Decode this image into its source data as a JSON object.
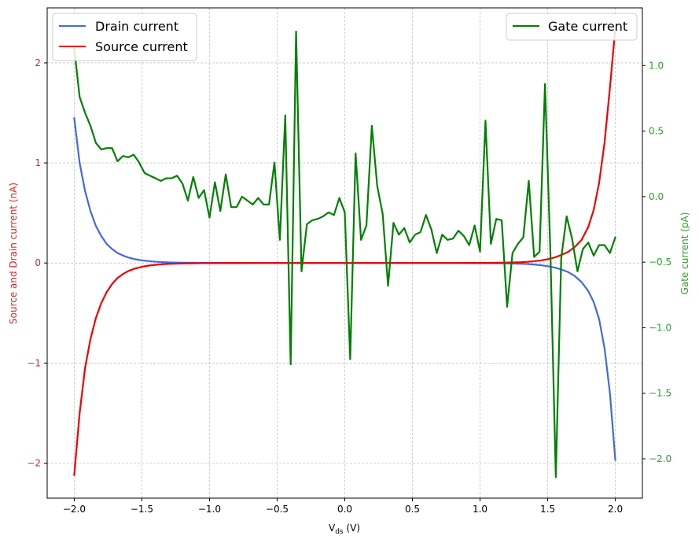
{
  "chart_data": {
    "type": "line",
    "xlabel_main": "V",
    "xlabel_sub": "ds",
    "xlabel_unit": " (V)",
    "ylabel_left": "Source and Drain current (nA)",
    "ylabel_right": "Gate current (pA)",
    "xlim": [
      -2.2,
      2.2
    ],
    "ylim_left": [
      -2.35,
      2.55
    ],
    "ylim_right": [
      -2.3,
      1.44
    ],
    "grid": true,
    "x_ticks": [
      -2.0,
      -1.5,
      -1.0,
      -0.5,
      0.0,
      0.5,
      1.0,
      1.5,
      2.0
    ],
    "x_tick_labels": [
      "−2.0",
      "−1.5",
      "−1.0",
      "−0.5",
      "0.0",
      "0.5",
      "1.0",
      "1.5",
      "2.0"
    ],
    "y_left_ticks": [
      -2,
      -1,
      0,
      1,
      2
    ],
    "y_left_tick_labels": [
      "−2",
      "−1",
      "0",
      "1",
      "2"
    ],
    "y_right_ticks": [
      -2.0,
      -1.5,
      -1.0,
      -0.5,
      0.0,
      0.5,
      1.0
    ],
    "y_right_tick_labels": [
      "−2.0",
      "−1.5",
      "−1.0",
      "−0.5",
      "0.0",
      "0.5",
      "1.0"
    ],
    "legend_left": {
      "placement": "top-left",
      "entries": [
        "Drain current",
        "Source current"
      ]
    },
    "legend_right": {
      "placement": "top-right",
      "entries": [
        "Gate current"
      ]
    },
    "colors": {
      "drain": "#4169e1",
      "source": "#ee0000",
      "gate": "#008000",
      "left_axis": "#d62728",
      "right_axis": "#2ca02c"
    },
    "series": [
      {
        "name": "Drain current",
        "axis": "left",
        "x": [
          -2.0,
          -1.96,
          -1.92,
          -1.88,
          -1.84,
          -1.8,
          -1.76,
          -1.72,
          -1.68,
          -1.64,
          -1.6,
          -1.55,
          -1.5,
          -1.45,
          -1.4,
          -1.35,
          -1.3,
          -1.2,
          -1.1,
          -1.0,
          -0.9,
          -0.8,
          -0.6,
          -0.4,
          -0.2,
          0.0,
          0.2,
          0.4,
          0.6,
          0.8,
          1.0,
          1.1,
          1.2,
          1.3,
          1.35,
          1.4,
          1.45,
          1.5,
          1.55,
          1.6,
          1.65,
          1.7,
          1.75,
          1.8,
          1.84,
          1.88,
          1.92,
          1.96,
          2.0
        ],
        "y": [
          1.45,
          1.0,
          0.72,
          0.52,
          0.37,
          0.27,
          0.19,
          0.14,
          0.1,
          0.075,
          0.055,
          0.038,
          0.027,
          0.019,
          0.013,
          0.009,
          0.006,
          0.003,
          0.0015,
          0.0008,
          0.0004,
          0.0002,
          0.0,
          0.0,
          0.0,
          0.0,
          0.0,
          0.0,
          0.0,
          0.0,
          -0.001,
          -0.002,
          -0.004,
          -0.007,
          -0.01,
          -0.015,
          -0.022,
          -0.032,
          -0.045,
          -0.064,
          -0.09,
          -0.13,
          -0.19,
          -0.28,
          -0.39,
          -0.56,
          -0.85,
          -1.3,
          -1.97
        ]
      },
      {
        "name": "Source current",
        "axis": "left",
        "x": [
          -2.0,
          -1.96,
          -1.92,
          -1.88,
          -1.84,
          -1.8,
          -1.76,
          -1.72,
          -1.68,
          -1.64,
          -1.6,
          -1.55,
          -1.5,
          -1.45,
          -1.4,
          -1.35,
          -1.3,
          -1.2,
          -1.1,
          -1.0,
          -0.9,
          -0.8,
          -0.6,
          -0.4,
          -0.2,
          0.0,
          0.2,
          0.4,
          0.6,
          0.8,
          1.0,
          1.1,
          1.2,
          1.3,
          1.35,
          1.4,
          1.45,
          1.5,
          1.55,
          1.6,
          1.65,
          1.7,
          1.75,
          1.8,
          1.84,
          1.88,
          1.92,
          1.96,
          2.0
        ],
        "y": [
          -2.12,
          -1.5,
          -1.05,
          -0.76,
          -0.55,
          -0.4,
          -0.29,
          -0.21,
          -0.15,
          -0.11,
          -0.08,
          -0.055,
          -0.038,
          -0.026,
          -0.018,
          -0.012,
          -0.008,
          -0.004,
          -0.002,
          -0.001,
          -0.0005,
          -0.0002,
          0.0,
          0.0,
          0.0,
          0.0,
          0.0,
          0.0,
          0.0,
          0.0,
          0.001,
          0.002,
          0.004,
          0.008,
          0.012,
          0.018,
          0.026,
          0.038,
          0.055,
          0.08,
          0.11,
          0.16,
          0.23,
          0.36,
          0.53,
          0.8,
          1.2,
          1.75,
          2.35
        ]
      },
      {
        "name": "Gate current",
        "axis": "right",
        "x": [
          -2.0,
          -1.96,
          -1.92,
          -1.88,
          -1.84,
          -1.8,
          -1.76,
          -1.72,
          -1.68,
          -1.64,
          -1.6,
          -1.56,
          -1.52,
          -1.48,
          -1.44,
          -1.4,
          -1.36,
          -1.32,
          -1.28,
          -1.24,
          -1.2,
          -1.16,
          -1.12,
          -1.08,
          -1.04,
          -1.0,
          -0.96,
          -0.92,
          -0.88,
          -0.84,
          -0.8,
          -0.76,
          -0.72,
          -0.68,
          -0.64,
          -0.6,
          -0.56,
          -0.52,
          -0.48,
          -0.44,
          -0.4,
          -0.36,
          -0.32,
          -0.28,
          -0.24,
          -0.2,
          -0.16,
          -0.12,
          -0.08,
          -0.04,
          0.0,
          0.04,
          0.08,
          0.12,
          0.16,
          0.2,
          0.24,
          0.28,
          0.32,
          0.36,
          0.4,
          0.44,
          0.48,
          0.52,
          0.56,
          0.6,
          0.64,
          0.68,
          0.72,
          0.76,
          0.8,
          0.84,
          0.88,
          0.92,
          0.96,
          1.0,
          1.04,
          1.08,
          1.12,
          1.16,
          1.2,
          1.24,
          1.28,
          1.32,
          1.36,
          1.4,
          1.44,
          1.48,
          1.52,
          1.56,
          1.6,
          1.64,
          1.68,
          1.72,
          1.76,
          1.8,
          1.84,
          1.88,
          1.92,
          1.96,
          2.0
        ],
        "y": [
          1.13,
          0.76,
          0.64,
          0.54,
          0.41,
          0.36,
          0.37,
          0.37,
          0.27,
          0.31,
          0.3,
          0.32,
          0.26,
          0.18,
          0.16,
          0.14,
          0.12,
          0.14,
          0.14,
          0.16,
          0.1,
          -0.03,
          0.15,
          -0.01,
          0.05,
          -0.16,
          0.11,
          -0.11,
          0.17,
          -0.08,
          -0.08,
          0.0,
          -0.03,
          -0.06,
          -0.01,
          -0.06,
          -0.06,
          0.26,
          -0.33,
          0.62,
          -1.28,
          1.26,
          -0.57,
          -0.21,
          -0.18,
          -0.17,
          -0.15,
          -0.12,
          -0.14,
          -0.01,
          -0.12,
          -1.24,
          0.33,
          -0.33,
          -0.22,
          0.54,
          0.08,
          -0.13,
          -0.68,
          -0.2,
          -0.29,
          -0.24,
          -0.35,
          -0.29,
          -0.27,
          -0.14,
          -0.25,
          -0.43,
          -0.29,
          -0.33,
          -0.32,
          -0.26,
          -0.3,
          -0.37,
          -0.22,
          -0.42,
          0.58,
          -0.36,
          -0.17,
          -0.18,
          -0.84,
          -0.43,
          -0.36,
          -0.31,
          0.12,
          -0.46,
          -0.42,
          0.86,
          -0.43,
          -2.14,
          -0.47,
          -0.15,
          -0.32,
          -0.57,
          -0.4,
          -0.35,
          -0.45,
          -0.37,
          -0.37,
          -0.43,
          -0.31
        ]
      }
    ]
  }
}
